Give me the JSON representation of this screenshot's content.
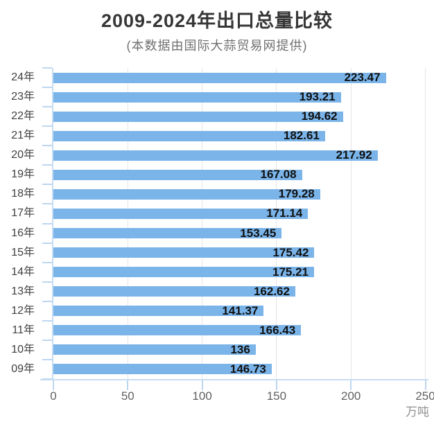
{
  "chart_data": {
    "type": "bar",
    "orientation": "horizontal",
    "title": "2009-2024年出口总量比较",
    "subtitle": "(本数据由国际大蒜贸易网提供)",
    "categories": [
      "24年",
      "23年",
      "22年",
      "21年",
      "20年",
      "19年",
      "18年",
      "17年",
      "16年",
      "15年",
      "14年",
      "13年",
      "12年",
      "11年",
      "10年",
      "09年"
    ],
    "values": [
      223.47,
      193.21,
      194.62,
      182.61,
      217.92,
      167.08,
      179.28,
      171.14,
      153.45,
      175.42,
      175.21,
      162.62,
      141.37,
      166.43,
      136,
      146.73
    ],
    "x_ticks": [
      0,
      50,
      100,
      150,
      200,
      250
    ],
    "xlim": [
      0,
      250
    ],
    "x_unit": "万吨",
    "legend": "none",
    "grid": "vertical gridlines every 50",
    "value_label_position": "inside-right",
    "colors": {
      "bar": "#7ab4e9",
      "grid_line": "#e4e4e4",
      "axis_line": "#c6dcf2",
      "axis_tick": "#bdd6f0",
      "value_label": "#0f0f0f",
      "category_label": "#3f3f3f",
      "tick_label": "#606060",
      "unit_label": "#8e8e8e",
      "title": "#363636",
      "subtitle": "#6f6f6f"
    }
  }
}
